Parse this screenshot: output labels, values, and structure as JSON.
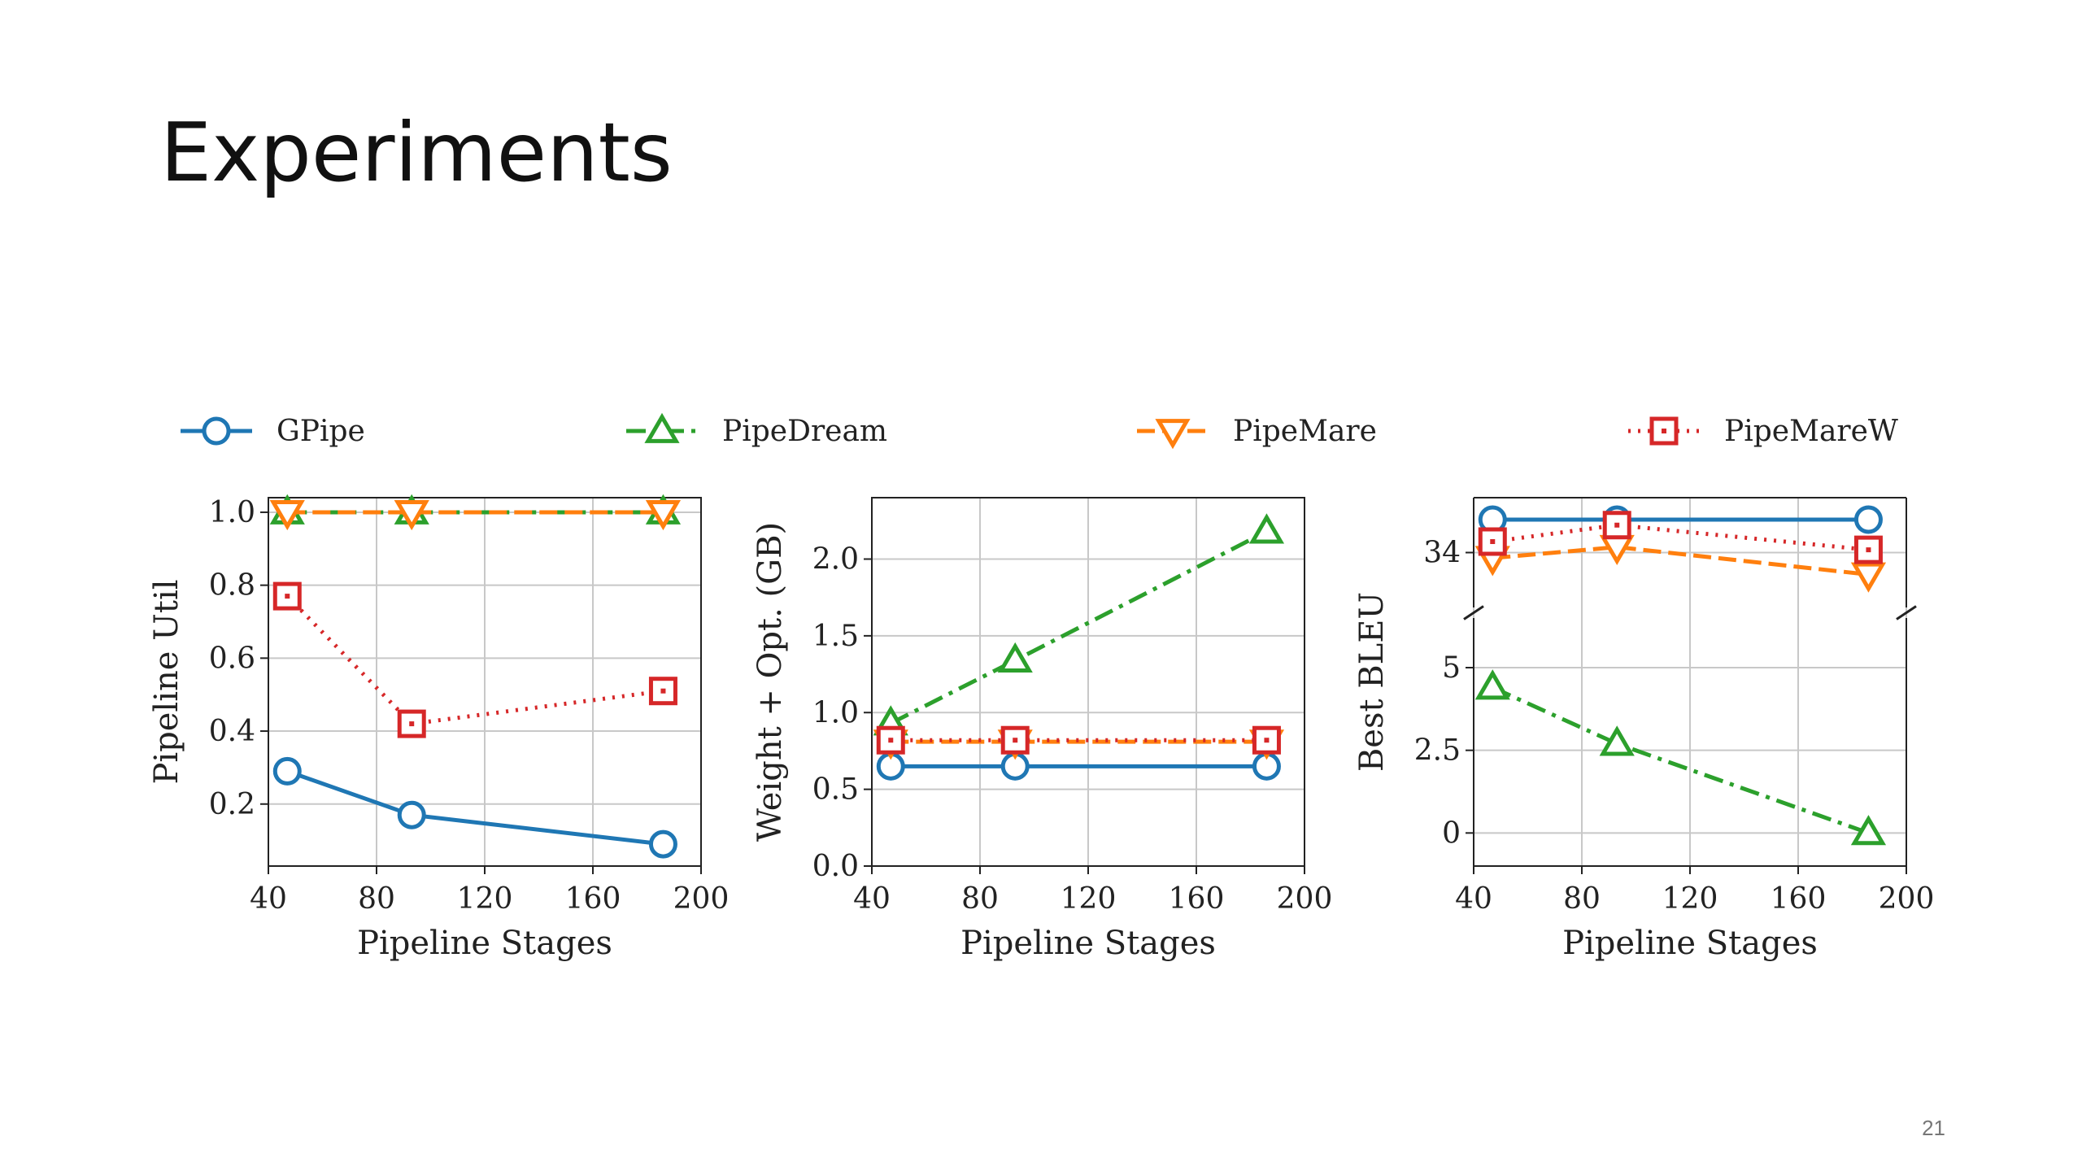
{
  "slide": {
    "title": "Experiments",
    "page_number": "21"
  },
  "legend": [
    {
      "name": "GPipe",
      "color": "#1f77b4",
      "marker": "circle",
      "dash": "solid"
    },
    {
      "name": "PipeDream",
      "color": "#2ca02c",
      "marker": "triangle-up",
      "dash": "dashdot"
    },
    {
      "name": "PipeMare",
      "color": "#ff7f0e",
      "marker": "triangle-down",
      "dash": "dashed"
    },
    {
      "name": "PipeMareW",
      "color": "#d62728",
      "marker": "square",
      "dash": "dotted"
    }
  ],
  "chart_data": [
    {
      "type": "line",
      "xlabel": "Pipeline Stages",
      "ylabel": "Pipeline Util",
      "xlim": [
        40,
        200
      ],
      "ylim": [
        0.03,
        1.04
      ],
      "xticks": [
        "40",
        "80",
        "120",
        "160",
        "200"
      ],
      "yticks": [
        "0.2",
        "0.4",
        "0.6",
        "0.8",
        "1.0"
      ],
      "grid": true,
      "x": [
        47,
        93,
        186
      ],
      "series": [
        {
          "name": "GPipe",
          "values": [
            0.29,
            0.17,
            0.09
          ]
        },
        {
          "name": "PipeDream",
          "values": [
            1.0,
            1.0,
            1.0
          ]
        },
        {
          "name": "PipeMare",
          "values": [
            1.0,
            1.0,
            1.0
          ]
        },
        {
          "name": "PipeMareW",
          "values": [
            0.77,
            0.42,
            0.51
          ]
        }
      ]
    },
    {
      "type": "line",
      "xlabel": "Pipeline Stages",
      "ylabel": "Weight + Opt. (GB)",
      "xlim": [
        40,
        200
      ],
      "ylim": [
        0.0,
        2.4
      ],
      "xticks": [
        "40",
        "80",
        "120",
        "160",
        "200"
      ],
      "yticks": [
        "0.0",
        "0.5",
        "1.0",
        "1.5",
        "2.0"
      ],
      "grid": true,
      "x": [
        47,
        93,
        186
      ],
      "series": [
        {
          "name": "GPipe",
          "values": [
            0.65,
            0.65,
            0.65
          ]
        },
        {
          "name": "PipeDream",
          "values": [
            0.93,
            1.34,
            2.18
          ]
        },
        {
          "name": "PipeMare",
          "values": [
            0.81,
            0.81,
            0.81
          ]
        },
        {
          "name": "PipeMareW",
          "values": [
            0.82,
            0.82,
            0.82
          ]
        }
      ]
    },
    {
      "type": "line",
      "xlabel": "Pipeline Stages",
      "ylabel": "Best BLEU",
      "xlim": [
        40,
        200
      ],
      "broken_y_axis": true,
      "upper_ylim": [
        33.0,
        35.0
      ],
      "lower_ylim": [
        -1.0,
        6.5
      ],
      "upper_yticks": [
        "34"
      ],
      "lower_yticks": [
        "0",
        "2.5",
        "5"
      ],
      "xticks": [
        "40",
        "80",
        "120",
        "160",
        "200"
      ],
      "grid": true,
      "x": [
        47,
        93,
        186
      ],
      "series": [
        {
          "name": "GPipe",
          "values": [
            34.6,
            34.6,
            34.6
          ]
        },
        {
          "name": "PipeDream",
          "values": [
            4.4,
            2.7,
            0.0
          ]
        },
        {
          "name": "PipeMare",
          "values": [
            33.9,
            34.1,
            33.6
          ]
        },
        {
          "name": "PipeMareW",
          "values": [
            34.2,
            34.5,
            34.05
          ]
        }
      ]
    }
  ]
}
